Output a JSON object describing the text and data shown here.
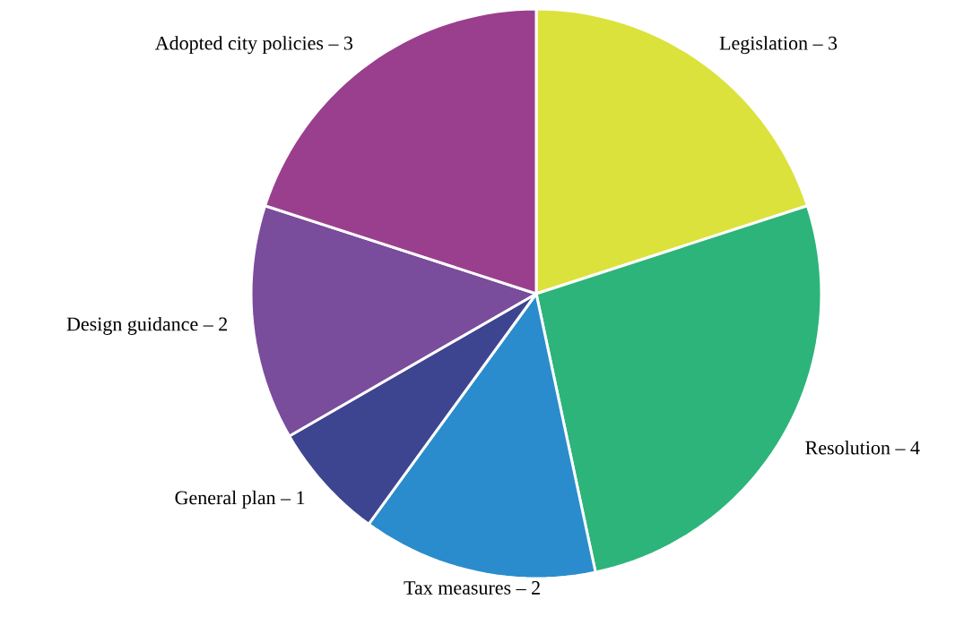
{
  "chart_data": {
    "type": "pie",
    "categories": [
      "Legislation –",
      "Resolution –",
      "Tax measures –",
      "General plan –",
      "Design guidance –",
      "Adopted city policies –"
    ],
    "values": [
      3,
      4,
      2,
      1,
      2,
      3
    ],
    "colors": [
      "#dce23c",
      "#2db47a",
      "#2a8ccc",
      "#3d4590",
      "#7a4c9c",
      "#9a3f8e"
    ],
    "data_labels": true
  }
}
